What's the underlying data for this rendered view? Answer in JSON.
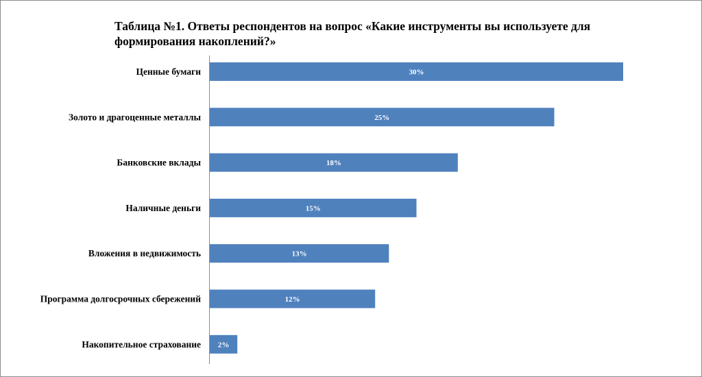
{
  "chart_data": {
    "type": "bar",
    "orientation": "horizontal",
    "title": "Таблица №1. Ответы респондентов на вопрос «Какие инструменты вы используете для формирования накоплений?»",
    "categories": [
      "Ценные бумаги",
      "Золото и драгоценные металлы",
      "Банковские вклады",
      "Наличные деньги",
      "Вложения в недвижимость",
      "Программа  долгосрочных сбережений",
      "Накопительное страхование"
    ],
    "values": [
      30,
      25,
      18,
      15,
      13,
      12,
      2
    ],
    "value_labels": [
      "30%",
      "25%",
      "18%",
      "15%",
      "13%",
      "12%",
      "2%"
    ],
    "xlim": [
      0,
      30
    ],
    "bar_color": "#4f81bd",
    "grid": false,
    "legend": false
  }
}
